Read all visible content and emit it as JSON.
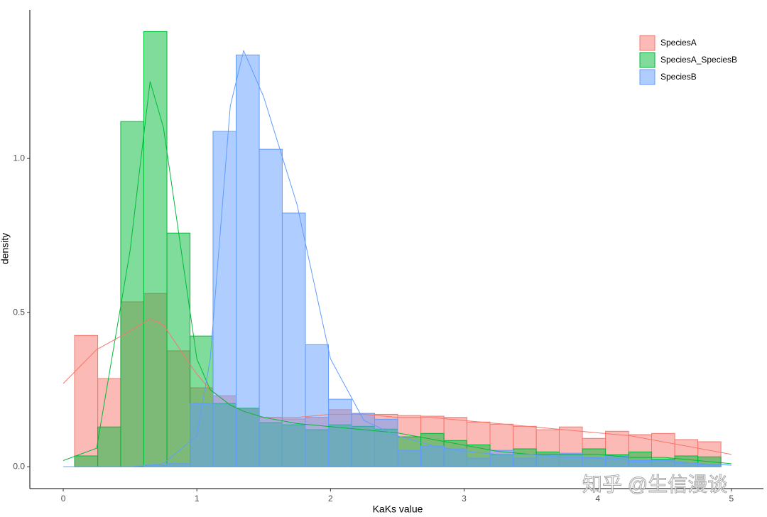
{
  "chart_data": {
    "type": "histogram",
    "xlabel": "KaKs value",
    "ylabel": "density",
    "watermark": "知乎 @生信漫谈",
    "xlim": [
      -0.25,
      5.24
    ],
    "ylim": [
      -0.071,
      1.482
    ],
    "xticks": [
      0,
      1,
      2,
      3,
      4,
      5
    ],
    "yticks": [
      {
        "value": 0,
        "label": "0.0"
      },
      0.5,
      {
        "value": 1,
        "label": "1.0"
      }
    ],
    "grid": false,
    "legend": "top-right",
    "bins": [
      0.085,
      0.258,
      0.43,
      0.603,
      0.776,
      0.949,
      1.121,
      1.294,
      1.467,
      1.639,
      1.812,
      1.985,
      2.158,
      2.33,
      2.503,
      2.676,
      2.849,
      3.021,
      3.194,
      3.367,
      3.54,
      3.712,
      3.885,
      4.058,
      4.231,
      4.403,
      4.576,
      4.749,
      4.922
    ],
    "density_x": [
      0,
      0.25,
      0.5,
      0.65,
      0.75,
      1,
      1.1,
      1.25,
      1.35,
      1.5,
      1.75,
      2,
      2.25,
      2.5,
      2.75,
      3,
      3.25,
      3.5,
      3.75,
      4,
      4.25,
      4.5,
      4.75,
      5
    ],
    "series": [
      {
        "name": "SpeciesA",
        "color": "#f8766d",
        "values": [
          0.426,
          0.286,
          0.535,
          0.562,
          0.376,
          0.256,
          0.23,
          0.19,
          0.16,
          0.155,
          0.16,
          0.185,
          0.173,
          0.17,
          0.166,
          0.164,
          0.16,
          0.145,
          0.138,
          0.131,
          0.12,
          0.129,
          0.092,
          0.115,
          0.104,
          0.108,
          0.088,
          0.081
        ],
        "density": [
          0.27,
          0.38,
          0.44,
          0.48,
          0.46,
          0.3,
          0.25,
          0.2,
          0.18,
          0.16,
          0.16,
          0.17,
          0.17,
          0.16,
          0.16,
          0.15,
          0.14,
          0.13,
          0.12,
          0.11,
          0.1,
          0.08,
          0.06,
          0.04
        ]
      },
      {
        "name": "SpeciesA_SpeciesB",
        "color": "#00ba38",
        "values": [
          0.035,
          0.129,
          1.12,
          1.412,
          0.758,
          0.424,
          0.205,
          0.19,
          0.143,
          0.136,
          0.12,
          0.136,
          0.131,
          0.122,
          0.097,
          0.108,
          0.085,
          0.071,
          0.039,
          0.058,
          0.048,
          0.039,
          0.058,
          0.039,
          0.048,
          0.025,
          0.035,
          0.032
        ],
        "density": [
          0.02,
          0.06,
          0.7,
          1.25,
          1.1,
          0.35,
          0.25,
          0.2,
          0.18,
          0.16,
          0.14,
          0.13,
          0.12,
          0.11,
          0.09,
          0.07,
          0.05,
          0.04,
          0.04,
          0.04,
          0.03,
          0.03,
          0.02,
          0.01
        ]
      },
      {
        "name": "SpeciesB",
        "color": "#619cff",
        "values": [
          0,
          0,
          0,
          0.005,
          0.01,
          0.205,
          1.088,
          1.336,
          1.03,
          0.823,
          0.396,
          0.219,
          0.173,
          0.154,
          0.053,
          0.067,
          0.058,
          0.028,
          0.053,
          0.028,
          0.039,
          0.044,
          0.028,
          0.035,
          0.016,
          0.021,
          0.012,
          0.007
        ],
        "density": [
          0,
          0,
          0,
          0.005,
          0.01,
          0.1,
          0.35,
          1.17,
          1.35,
          1.2,
          0.85,
          0.35,
          0.15,
          0.1,
          0.07,
          0.05,
          0.04,
          0.04,
          0.03,
          0.03,
          0.02,
          0.02,
          0.01,
          0.005
        ]
      }
    ]
  }
}
